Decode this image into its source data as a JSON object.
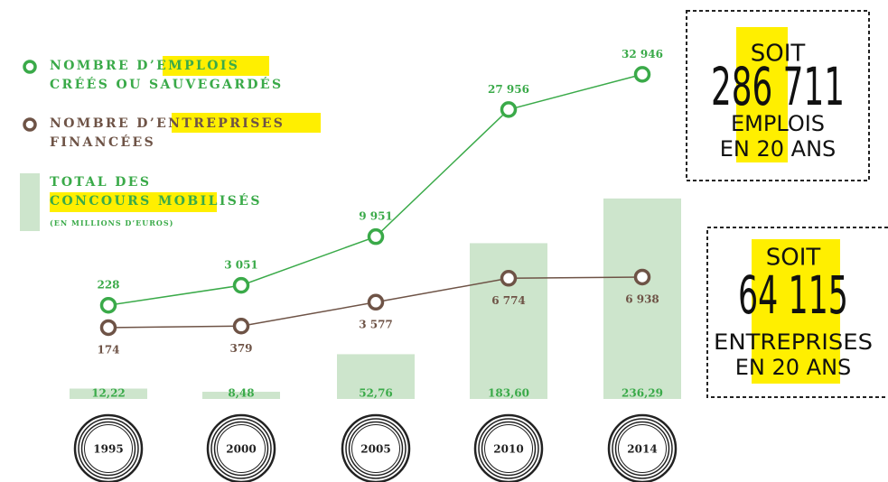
{
  "chart_data": {
    "type": "line",
    "categories": [
      "1995",
      "2000",
      "2005",
      "2010",
      "2014"
    ],
    "series": [
      {
        "name": "NOMBRE D’EMPLOIS\nCRÉÉS OU SAUVEGARDÉS",
        "type": "line",
        "color": "#3aaa49",
        "values": [
          228,
          3051,
          9951,
          27956,
          32946
        ],
        "value_labels": [
          "228",
          "3 051",
          "9 951",
          "27 956",
          "32 946"
        ]
      },
      {
        "name": "NOMBRE D’ENTREPRISES\nFINANCÉES",
        "type": "line",
        "color": "#6e5346",
        "values": [
          174,
          379,
          3577,
          6774,
          6938
        ],
        "value_labels": [
          "174",
          "379",
          "3 577",
          "6 774",
          "6 938"
        ]
      },
      {
        "name": "TOTAL DES\nCONCOURS MOBILISÉS",
        "type": "bar",
        "color": "#cde5cc",
        "values": [
          12.22,
          8.48,
          52.76,
          183.6,
          236.29
        ],
        "value_labels": [
          "12,22",
          "8,48",
          "52,76",
          "183,60",
          "236,29"
        ]
      }
    ],
    "note": "(EN MILLIONS D’EUROS)",
    "callouts": [
      {
        "lines": [
          "SOIT",
          "286 711",
          "EMPLOIS",
          "EN 20 ANS"
        ]
      },
      {
        "lines": [
          "SOIT",
          "64 115",
          "ENTREPRISES",
          "EN 20 ANS"
        ]
      }
    ]
  }
}
